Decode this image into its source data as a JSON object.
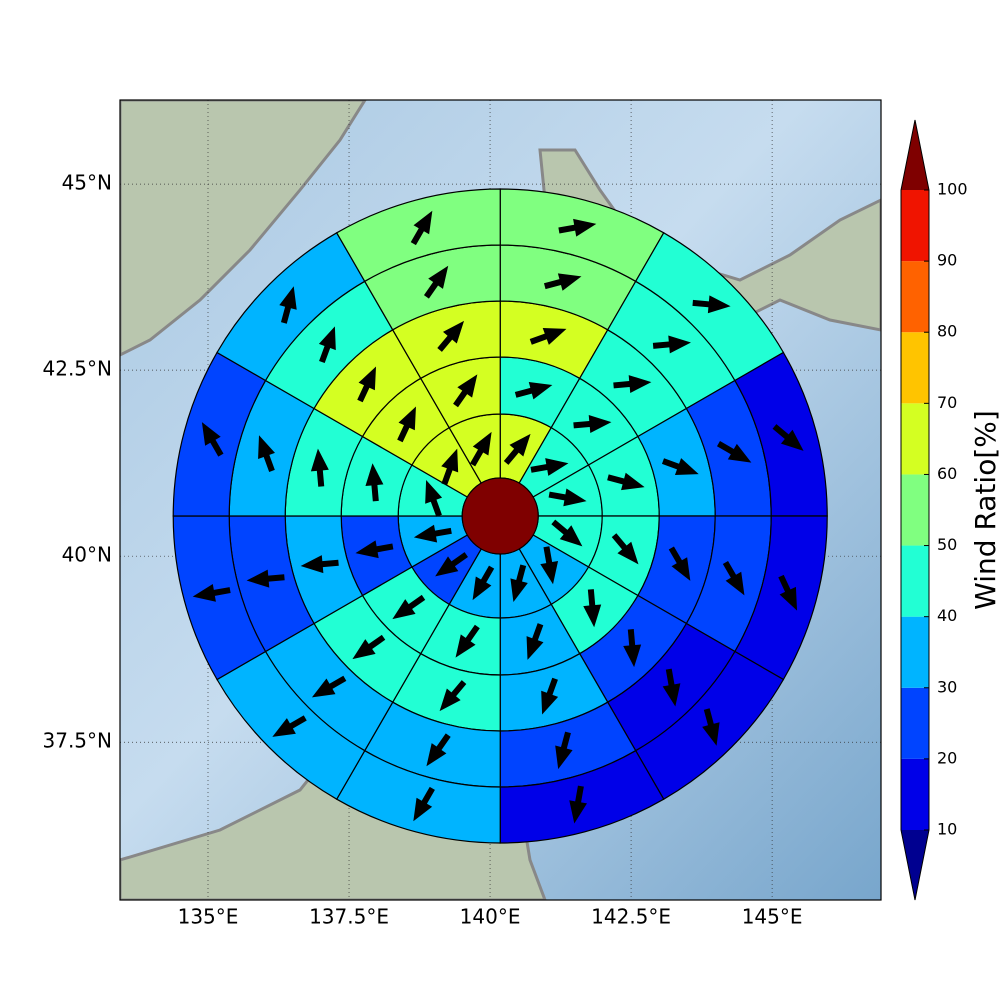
{
  "chart_data": {
    "type": "polar-grid",
    "center": {
      "lon": 140.18,
      "lat": 40.54
    },
    "xlim": [
      133.44,
      146.93
    ],
    "ylim": [
      35.38,
      46.13
    ],
    "xticks": [
      {
        "value": 135,
        "label": "135°E"
      },
      {
        "value": 137.5,
        "label": "137.5°E"
      },
      {
        "value": 140,
        "label": "140°E"
      },
      {
        "value": 142.5,
        "label": "142.5°E"
      },
      {
        "value": 145,
        "label": "145°E"
      }
    ],
    "yticks": [
      {
        "value": 37.5,
        "label": "37.5°N"
      },
      {
        "value": 40,
        "label": "40°N"
      },
      {
        "value": 42.5,
        "label": "42.5°N"
      },
      {
        "value": 45,
        "label": "45°N"
      }
    ],
    "grid": true,
    "colorbar": {
      "label": "Wind Ratio[%]",
      "levels": [
        10,
        20,
        30,
        40,
        50,
        60,
        70,
        80,
        90,
        100
      ],
      "colors": [
        "#0000e8",
        "#0044ff",
        "#00b4ff",
        "#22ffd4",
        "#80ff80",
        "#d4ff22",
        "#ffc400",
        "#ff6200",
        "#f01400"
      ],
      "under_color": "#000090",
      "over_color": "#7f0000"
    },
    "sectors": [
      {
        "values": [
          65,
          45,
          65,
          55,
          55
        ],
        "directions": [
          40,
          75,
          70,
          75,
          80
        ]
      },
      {
        "values": [
          45,
          45,
          45,
          45,
          45
        ],
        "directions": [
          80,
          85,
          85,
          85,
          95
        ]
      },
      {
        "values": [
          45,
          45,
          35,
          25,
          15
        ],
        "directions": [
          100,
          105,
          110,
          120,
          130
        ]
      },
      {
        "values": [
          45,
          45,
          25,
          25,
          15
        ],
        "directions": [
          130,
          140,
          150,
          150,
          155
        ]
      },
      {
        "values": [
          35,
          45,
          25,
          15,
          15
        ],
        "directions": [
          170,
          175,
          175,
          170,
          165
        ]
      },
      {
        "values": [
          35,
          35,
          35,
          25,
          15
        ],
        "directions": [
          195,
          200,
          200,
          195,
          190
        ]
      },
      {
        "values": [
          35,
          45,
          45,
          35,
          35
        ],
        "directions": [
          210,
          215,
          220,
          215,
          210
        ]
      },
      {
        "values": [
          25,
          45,
          45,
          35,
          35
        ],
        "directions": [
          235,
          235,
          235,
          240,
          240
        ]
      },
      {
        "values": [
          35,
          25,
          35,
          25,
          25
        ],
        "directions": [
          260,
          260,
          265,
          265,
          260
        ]
      },
      {
        "values": [
          45,
          45,
          45,
          35,
          25
        ],
        "directions": [
          340,
          355,
          355,
          340,
          330
        ]
      },
      {
        "values": [
          65,
          65,
          65,
          45,
          35
        ],
        "directions": [
          20,
          25,
          25,
          20,
          15
        ]
      },
      {
        "values": [
          65,
          65,
          65,
          55,
          55
        ],
        "directions": [
          30,
          35,
          40,
          35,
          30
        ]
      }
    ]
  }
}
